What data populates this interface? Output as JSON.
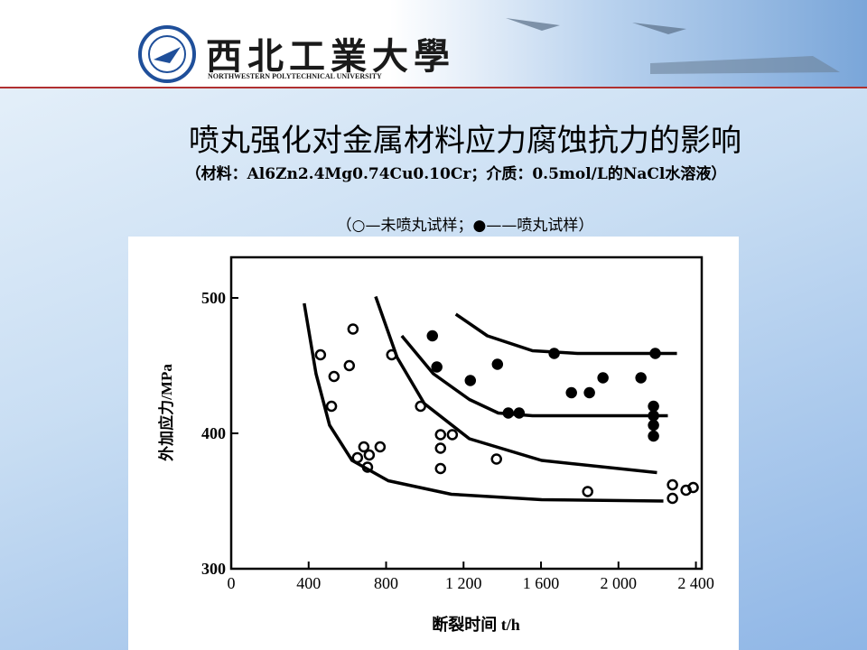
{
  "header": {
    "university": "西北工業大學",
    "university_en": "NORTHWESTERN POLYTECHNICAL UNIVERSITY"
  },
  "chart_data": {
    "type": "scatter",
    "title": "喷丸强化对金属材料应力腐蚀抗力的影响",
    "subtitle": "（材料：Al6Zn2.4Mg0.74Cu0.10Cr；介质：0.5mol/L的NaCl水溶液）",
    "legend_note": "（○—未喷丸试样；●——喷丸试样）",
    "xlabel": "断裂时间 t/h",
    "ylabel": "外加应力/MPa",
    "xlim": [
      0,
      2430
    ],
    "ylim": [
      300,
      530
    ],
    "xticks": [
      0,
      400,
      800,
      {
        "value": 1200,
        "label": "1 200"
      },
      {
        "value": 1600,
        "label": "1 600"
      },
      {
        "value": 2000,
        "label": "2 000"
      },
      {
        "value": 2400,
        "label": "2 400"
      }
    ],
    "yticks": [
      300,
      400,
      500
    ],
    "color": "#000000",
    "series": [
      {
        "marker": "open",
        "x": [
          461,
          531,
          518,
          610,
          629,
          829,
          978,
          1081,
          1142,
          1081,
          1081,
          685,
          769,
          652,
          713,
          704,
          1370,
          1841,
          2279,
          2279,
          2349,
          2386
        ],
        "values": [
          458,
          442,
          420,
          450,
          477,
          458,
          420,
          399,
          399,
          389,
          374,
          390,
          390,
          382,
          384,
          375,
          381,
          357,
          362,
          352,
          358,
          360
        ]
      },
      {
        "marker": "filled",
        "x": [
          1039,
          1062,
          1235,
          1375,
          1431,
          1487,
          1668,
          1757,
          1850,
          1920,
          2116,
          2190,
          2181,
          2181,
          2181,
          2181
        ],
        "values": [
          472,
          449,
          439,
          451,
          415,
          415,
          459,
          430,
          430,
          441,
          441,
          459,
          420,
          413,
          406,
          398
        ]
      },
      {
        "marker": "curve",
        "x": [
          377,
          438,
          508,
          624,
          811,
          1137,
          1603,
          2232
        ],
        "values": [
          496,
          444,
          406,
          380,
          365,
          355,
          351,
          350
        ]
      },
      {
        "marker": "curve",
        "x": [
          746,
          857,
          997,
          1230,
          1603,
          2199
        ],
        "values": [
          501,
          456,
          422,
          396,
          380,
          371
        ]
      },
      {
        "marker": "curve",
        "x": [
          881,
          1044,
          1230,
          1379,
          1556,
          2255
        ],
        "values": [
          472,
          444,
          425,
          415,
          413,
          413
        ]
      },
      {
        "marker": "curve",
        "x": [
          1160,
          1323,
          1556,
          1789,
          2302
        ],
        "values": [
          488,
          472,
          461,
          459,
          459
        ]
      }
    ]
  }
}
